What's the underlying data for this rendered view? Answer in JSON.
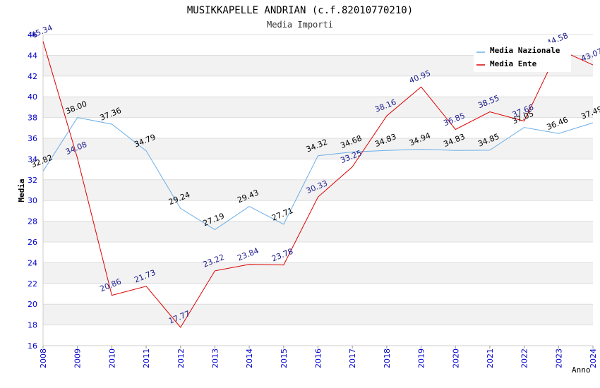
{
  "chart_data": {
    "type": "line",
    "title": "MUSIKKAPELLE ANDRIAN (c.f.82010770210)",
    "subtitle": "Media Importi",
    "xlabel": "Anno",
    "ylabel": "Media",
    "ylim": [
      16,
      46
    ],
    "y_ticks": [
      "16",
      "18",
      "20",
      "22",
      "24",
      "26",
      "28",
      "30",
      "32",
      "34",
      "36",
      "38",
      "40",
      "42",
      "44",
      "46"
    ],
    "categories": [
      "2008",
      "2009",
      "2010",
      "2011",
      "2012",
      "2013",
      "2014",
      "2015",
      "2016",
      "2017",
      "2018",
      "2019",
      "2020",
      "2021",
      "2022",
      "2023",
      "2024"
    ],
    "grid": true,
    "legend_position": "top-right",
    "series": [
      {
        "name": "Media Nazionale",
        "color": "#6aaee8",
        "label_color": "#000000",
        "values": [
          32.82,
          38.0,
          37.36,
          34.79,
          29.24,
          27.19,
          29.43,
          27.71,
          34.32,
          34.68,
          34.83,
          34.94,
          34.83,
          34.85,
          37.05,
          36.46,
          37.49
        ],
        "labels": [
          "32.82",
          "38.00",
          "37.36",
          "34.79",
          "29.24",
          "27.19",
          "29.43",
          "27.71",
          "34.32",
          "34.68",
          "34.83",
          "34.94",
          "34.83",
          "34.85",
          "37.05",
          "36.46",
          "37.49"
        ]
      },
      {
        "name": "Media Ente",
        "color": "#dd0000",
        "label_color": "#1a1a8c",
        "values": [
          45.34,
          34.08,
          20.86,
          21.73,
          17.77,
          23.22,
          23.84,
          23.78,
          30.33,
          33.25,
          38.16,
          40.95,
          36.85,
          38.55,
          37.66,
          44.58,
          43.07
        ],
        "labels": [
          "45.34",
          "34.08",
          "20.86",
          "21.73",
          "17.77",
          "23.22",
          "23.84",
          "23.78",
          "30.33",
          "33.25",
          "38.16",
          "40.95",
          "36.85",
          "38.55",
          "37.66",
          "44.58",
          "43.07"
        ]
      }
    ]
  },
  "colors": {
    "tick_label": "#0000cc",
    "band": "#f2f2f2",
    "grid": "#dddddd"
  }
}
